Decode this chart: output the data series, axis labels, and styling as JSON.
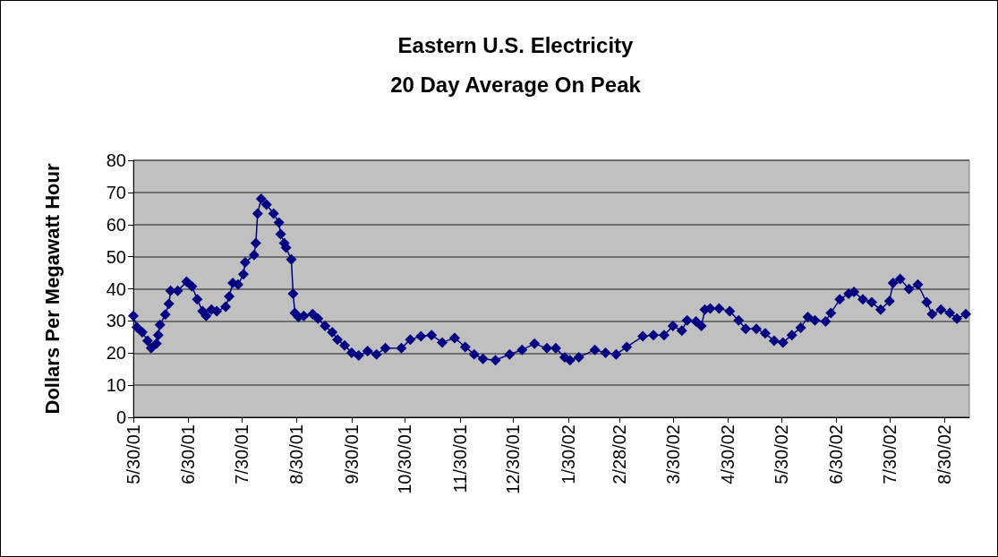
{
  "chart_data": {
    "type": "line",
    "title": "Eastern U.S. Electricity\n20 Day Average On Peak",
    "ylabel": "Dollars Per Megawatt Hour",
    "x": [
      "2001-05-30",
      "2001-06-01",
      "2001-06-04",
      "2001-06-07",
      "2001-06-09",
      "2001-06-12",
      "2001-06-13",
      "2001-06-14",
      "2001-06-17",
      "2001-06-19",
      "2001-06-20",
      "2001-06-24",
      "2001-06-29",
      "2001-07-02",
      "2001-07-05",
      "2001-07-08",
      "2001-07-10",
      "2001-07-13",
      "2001-07-16",
      "2001-07-21",
      "2001-07-23",
      "2001-07-25",
      "2001-07-28",
      "2001-07-31",
      "2001-08-01",
      "2001-08-06",
      "2001-08-07",
      "2001-08-08",
      "2001-08-10",
      "2001-08-13",
      "2001-08-17",
      "2001-08-20",
      "2001-08-21",
      "2001-08-23",
      "2001-08-24",
      "2001-08-27",
      "2001-08-28",
      "2001-08-29",
      "2001-08-31",
      "2001-09-03",
      "2001-09-08",
      "2001-09-11",
      "2001-09-15",
      "2001-09-19",
      "2001-09-22",
      "2001-09-26",
      "2001-09-30",
      "2001-10-04",
      "2001-10-09",
      "2001-10-14",
      "2001-10-19",
      "2001-10-28",
      "2001-11-02",
      "2001-11-08",
      "2001-11-14",
      "2001-11-20",
      "2001-11-27",
      "2001-12-03",
      "2001-12-08",
      "2001-12-13",
      "2001-12-20",
      "2001-12-28",
      "2002-01-04",
      "2002-01-11",
      "2002-01-18",
      "2002-01-23",
      "2002-01-28",
      "2002-01-31",
      "2002-02-05",
      "2002-02-14",
      "2002-02-20",
      "2002-02-26",
      "2002-03-04",
      "2002-03-13",
      "2002-03-19",
      "2002-03-25",
      "2002-03-30",
      "2002-04-04",
      "2002-04-07",
      "2002-04-12",
      "2002-04-15",
      "2002-04-17",
      "2002-04-20",
      "2002-04-25",
      "2002-05-01",
      "2002-05-06",
      "2002-05-10",
      "2002-05-16",
      "2002-05-21",
      "2002-05-26",
      "2002-05-31",
      "2002-06-05",
      "2002-06-10",
      "2002-06-14",
      "2002-06-18",
      "2002-06-24",
      "2002-06-27",
      "2002-07-02",
      "2002-07-07",
      "2002-07-10",
      "2002-07-15",
      "2002-07-20",
      "2002-07-25",
      "2002-07-30",
      "2002-08-01",
      "2002-08-05",
      "2002-08-10",
      "2002-08-15",
      "2002-08-20",
      "2002-08-23",
      "2002-08-28",
      "2002-09-02",
      "2002-09-06",
      "2002-09-11"
    ],
    "series": [
      {
        "color": "#000080",
        "values": [
          31.6,
          28,
          26.5,
          23.8,
          21.5,
          22.9,
          25.6,
          28.8,
          32,
          35.3,
          39.4,
          39.4,
          42.2,
          40.8,
          36.7,
          33,
          31.6,
          33.5,
          33,
          34.4,
          37.6,
          41.8,
          41.3,
          44.5,
          48.2,
          50.5,
          54.2,
          63.4,
          68,
          66.2,
          63.4,
          60.6,
          57,
          54.2,
          52.8,
          49.1,
          38.5,
          32.5,
          31.2,
          31.6,
          32.1,
          30.7,
          28.4,
          26.5,
          24.2,
          22.4,
          20.1,
          19.2,
          20.6,
          19.6,
          21.5,
          21.5,
          24.2,
          25.2,
          25.6,
          23.3,
          24.7,
          21.9,
          19.6,
          18.2,
          17.8,
          19.6,
          21,
          22.9,
          21.5,
          21.5,
          18.7,
          17.8,
          18.7,
          21,
          20.1,
          19.6,
          21.9,
          25.2,
          25.6,
          25.6,
          28.4,
          27,
          30.2,
          29.8,
          28.4,
          33.5,
          33.9,
          33.9,
          33,
          30.2,
          27.5,
          27.5,
          26.1,
          23.8,
          23.3,
          25.6,
          27.9,
          31.2,
          30.2,
          29.8,
          32.5,
          36.7,
          38.5,
          39,
          36.7,
          35.8,
          33.5,
          36.2,
          41.8,
          43.1,
          39.9,
          41.3,
          35.8,
          32.1,
          33.5,
          32.5,
          30.7,
          32.1
        ]
      }
    ],
    "xlim": [
      "2001-05-30",
      "2002-09-13"
    ],
    "xticks": [
      {
        "value": "2001-05-30",
        "label": "5/30/01"
      },
      {
        "value": "2001-06-30",
        "label": "6/30/01"
      },
      {
        "value": "2001-07-30",
        "label": "7/30/01"
      },
      {
        "value": "2001-08-30",
        "label": "8/30/01"
      },
      {
        "value": "2001-09-30",
        "label": "9/30/01"
      },
      {
        "value": "2001-10-30",
        "label": "10/30/01"
      },
      {
        "value": "2001-11-30",
        "label": "11/30/01"
      },
      {
        "value": "2001-12-30",
        "label": "12/30/01"
      },
      {
        "value": "2002-01-30",
        "label": "1/30/02"
      },
      {
        "value": "2002-02-28",
        "label": "2/28/02"
      },
      {
        "value": "2002-03-30",
        "label": "3/30/02"
      },
      {
        "value": "2002-04-30",
        "label": "4/30/02"
      },
      {
        "value": "2002-05-30",
        "label": "5/30/02"
      },
      {
        "value": "2002-06-30",
        "label": "6/30/02"
      },
      {
        "value": "2002-07-30",
        "label": "7/30/02"
      },
      {
        "value": "2002-08-30",
        "label": "8/30/02"
      }
    ],
    "ylim": [
      0,
      80
    ],
    "yticks": [
      0,
      10,
      20,
      30,
      40,
      50,
      60,
      70,
      80
    ],
    "grid": "y",
    "marker": "diamond",
    "line_style": "solid"
  }
}
